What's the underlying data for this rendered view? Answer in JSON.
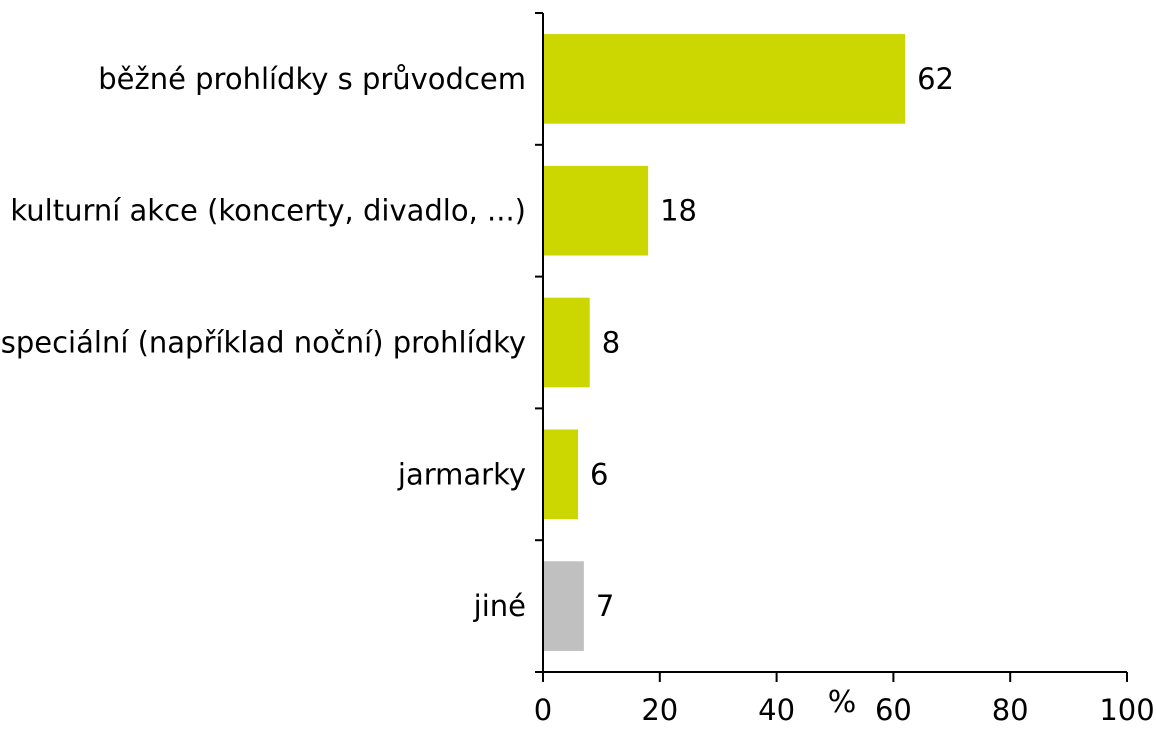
{
  "chart_data": {
    "type": "bar",
    "orientation": "horizontal",
    "categories": [
      "běžné prohlídky s průvodcem",
      "kulturní akce (koncerty, divadlo, ...)",
      "speciální (například noční) prohlídky",
      "jarmarky",
      "jiné"
    ],
    "values": [
      62,
      18,
      8,
      6,
      7
    ],
    "data_labels": [
      "62",
      "18",
      "8",
      "6",
      "7"
    ],
    "bar_colors": [
      "#ccd600",
      "#ccd600",
      "#ccd600",
      "#ccd600",
      "#c0c0c0"
    ],
    "xlabel": "%",
    "xlim": [
      0,
      100
    ],
    "xticks": [
      0,
      20,
      40,
      60,
      80,
      100
    ],
    "xtick_labels": [
      "0",
      "20",
      "40",
      "60",
      "80",
      "100"
    ],
    "grid": false,
    "legend": "none"
  }
}
